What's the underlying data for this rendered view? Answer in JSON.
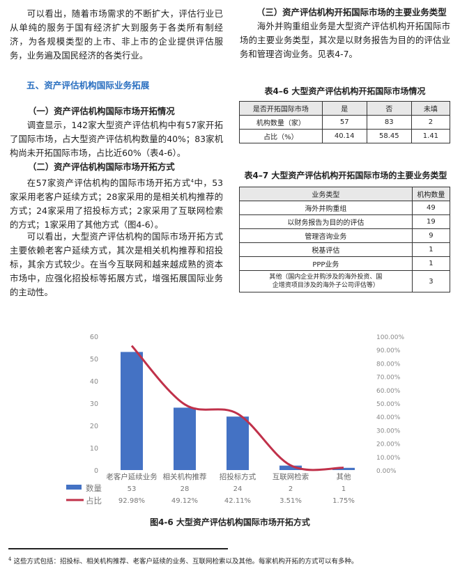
{
  "left": {
    "para1": "可以看出，随着市场需求的不断扩大，评估行业已从单纯的服务于国有经济扩大到服务于各类所有制经济，为各规模类型的上市、非上市的企业提供评估服务，业务遍及国民经济的各类行业。",
    "section_heading": "五、资产评估机构国际业务拓展",
    "sub1": "（一）资产评估机构国际市场开拓情况",
    "para2": "调查显示，142家大型资产评估机构中有57家开拓了国际市场，占大型资产评估机构数量的40%；83家机构尚未开拓国际市场，占比近60%（表4-6）。",
    "sub2": "（二）资产评估机构国际市场开拓方式",
    "para3_a": "在57家资产评估机构的国际市场开拓方式",
    "para3_sup": "4",
    "para3_b": "中，53家采用老客户延续方式；28家采用的是相关机构推荐的方式；24家采用了招投标方式；2家采用了互联网检索的方式；1家采用了其他方式（图4-6）。",
    "para4": "可以看出，大型资产评估机构的国际市场开拓方式主要依赖老客户延续方式，其次是相关机构推荐和招投标，其余方式较少。在当今互联网和越来越成熟的资本市场中，应强化招投标等拓展方式，增强拓展国际业务的主动性。"
  },
  "right": {
    "sub3": "（三）资产评估机构开拓国际市场的主要业务类型",
    "para5": "海外并购重组业务是大型资产评估机构开拓国际市场的主要业务类型，其次是以财务报告为目的的评估业务和管理咨询业务。见表4-7。",
    "table46": {
      "title": "表4–6  大型资产评估机构开拓国际市场情况",
      "header": [
        "是否开拓国际市场",
        "是",
        "否",
        "未填"
      ],
      "rows": [
        [
          "机构数量（家）",
          "57",
          "83",
          "2"
        ],
        [
          "占比（%）",
          "40.14",
          "58.45",
          "1.41"
        ]
      ]
    },
    "table47": {
      "title": "表4–7  大型资产评估机构开拓国际市场的主要业务类型",
      "header": [
        "业务类型",
        "机构数量"
      ],
      "rows": [
        [
          "海外并购重组",
          "49"
        ],
        [
          "以财务报告为目的的评估",
          "19"
        ],
        [
          "管理咨询业务",
          "9"
        ],
        [
          "税基评估",
          "1"
        ],
        [
          "PPP业务",
          "1"
        ],
        [
          "其他（国内企业并购涉及的海外投资、国企增资项目涉及的海外子公司评估等）",
          "3"
        ]
      ]
    }
  },
  "chart_data": {
    "type": "bar",
    "title": "",
    "categories": [
      "老客户延续业务",
      "相关机构推荐",
      "招投标方式",
      "互联网检索",
      "其他"
    ],
    "series": [
      {
        "name": "数量",
        "type": "bar",
        "axis": "left",
        "values": [
          53,
          28,
          24,
          2,
          1
        ],
        "labels": [
          "53",
          "28",
          "24",
          "2",
          "1"
        ],
        "color": "#4472c4"
      },
      {
        "name": "占比",
        "type": "line",
        "axis": "right",
        "values": [
          92.98,
          49.12,
          42.11,
          3.51,
          1.75
        ],
        "labels": [
          "92.98%",
          "49.12%",
          "42.11%",
          "3.51%",
          "1.75%"
        ],
        "color": "#c0314a"
      }
    ],
    "y_left": {
      "range": [
        0,
        60
      ],
      "ticks": [
        "0",
        "10",
        "20",
        "30",
        "40",
        "50",
        "60"
      ]
    },
    "y_right": {
      "range": [
        0,
        100
      ],
      "ticks": [
        "0.00%",
        "10.00%",
        "20.00%",
        "30.00%",
        "40.00%",
        "50.00%",
        "60.00%",
        "70.00%",
        "80.00%",
        "90.00%",
        "100.00%"
      ]
    },
    "grid": false,
    "legend": "bottom-left data table"
  },
  "figure_caption": "图4-6  大型资产评估机构国际市场开拓方式",
  "footnote": {
    "mark": "4",
    "text": "这些方式包括：招投标、相关机构推荐、老客户延续的业务、互联网检索以及其他。每家机构开拓的方式可以有多种。"
  }
}
